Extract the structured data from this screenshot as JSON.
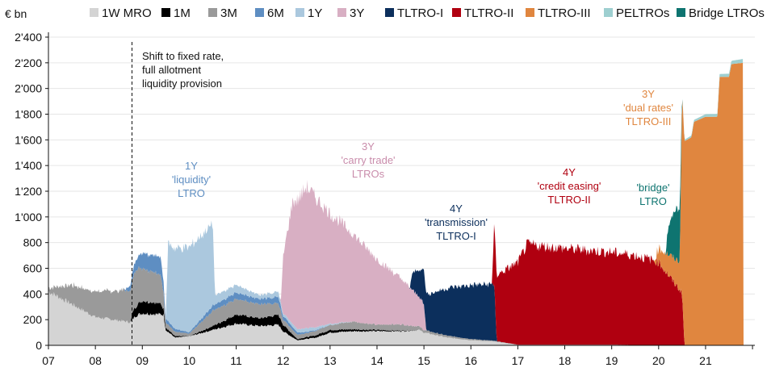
{
  "chart_data": {
    "type": "area",
    "unit_label": "€ bn",
    "x_labels": [
      "07",
      "08",
      "09",
      "10",
      "11",
      "12",
      "13",
      "14",
      "15",
      "16",
      "17",
      "18",
      "19",
      "20",
      "21"
    ],
    "y_ticks": [
      "0",
      "200",
      "400",
      "600",
      "800",
      "1'000",
      "1'200",
      "1'400",
      "1'600",
      "1'800",
      "2'000",
      "2'200",
      "2'400"
    ],
    "ylim": [
      0,
      2400
    ],
    "grid": true,
    "legend_position": "top",
    "series": [
      {
        "name": "1W MRO",
        "color": "#d4d4d4",
        "points": [
          [
            2007.0,
            420
          ],
          [
            2008.0,
            220
          ],
          [
            2008.75,
            180
          ],
          [
            2008.85,
            230
          ],
          [
            2009.0,
            250
          ],
          [
            2009.45,
            240
          ],
          [
            2009.5,
            120
          ],
          [
            2009.7,
            60
          ],
          [
            2010.0,
            70
          ],
          [
            2010.5,
            120
          ],
          [
            2011.0,
            170
          ],
          [
            2011.5,
            150
          ],
          [
            2011.9,
            160
          ],
          [
            2012.0,
            110
          ],
          [
            2012.3,
            40
          ],
          [
            2012.7,
            60
          ],
          [
            2013.0,
            100
          ],
          [
            2013.5,
            110
          ],
          [
            2014.0,
            110
          ],
          [
            2014.5,
            110
          ],
          [
            2014.9,
            120
          ],
          [
            2015.0,
            100
          ],
          [
            2015.5,
            60
          ],
          [
            2016.0,
            40
          ],
          [
            2016.5,
            30
          ],
          [
            2017.0,
            5
          ],
          [
            2018.0,
            5
          ],
          [
            2019.0,
            5
          ],
          [
            2020.0,
            0
          ],
          [
            2021.8,
            0
          ]
        ]
      },
      {
        "name": "1M",
        "color": "#000000",
        "points": [
          [
            2007.0,
            0
          ],
          [
            2008.75,
            0
          ],
          [
            2008.8,
            60
          ],
          [
            2009.0,
            100
          ],
          [
            2009.4,
            80
          ],
          [
            2009.5,
            20
          ],
          [
            2010.0,
            0
          ],
          [
            2010.5,
            30
          ],
          [
            2011.0,
            70
          ],
          [
            2011.5,
            60
          ],
          [
            2011.9,
            80
          ],
          [
            2012.0,
            50
          ],
          [
            2012.3,
            10
          ],
          [
            2012.8,
            20
          ],
          [
            2013.0,
            20
          ],
          [
            2014.0,
            10
          ],
          [
            2015.0,
            0
          ],
          [
            2021.8,
            0
          ]
        ]
      },
      {
        "name": "3M",
        "color": "#9a9a9a",
        "points": [
          [
            2007.0,
            30
          ],
          [
            2007.5,
            150
          ],
          [
            2008.0,
            200
          ],
          [
            2008.75,
            250
          ],
          [
            2008.85,
            280
          ],
          [
            2009.0,
            260
          ],
          [
            2009.4,
            220
          ],
          [
            2009.5,
            40
          ],
          [
            2010.0,
            20
          ],
          [
            2010.5,
            120
          ],
          [
            2011.0,
            120
          ],
          [
            2011.5,
            110
          ],
          [
            2011.9,
            90
          ],
          [
            2012.0,
            40
          ],
          [
            2012.5,
            30
          ],
          [
            2013.0,
            40
          ],
          [
            2013.5,
            60
          ],
          [
            2014.0,
            40
          ],
          [
            2014.5,
            50
          ],
          [
            2015.0,
            20
          ],
          [
            2015.5,
            15
          ],
          [
            2016.0,
            10
          ],
          [
            2017.0,
            0
          ],
          [
            2021.8,
            0
          ]
        ]
      },
      {
        "name": "6M",
        "color": "#5e8ec2",
        "points": [
          [
            2007.0,
            0
          ],
          [
            2008.6,
            0
          ],
          [
            2008.8,
            60
          ],
          [
            2009.0,
            120
          ],
          [
            2009.4,
            140
          ],
          [
            2009.5,
            30
          ],
          [
            2010.0,
            10
          ],
          [
            2010.5,
            40
          ],
          [
            2011.0,
            50
          ],
          [
            2011.5,
            40
          ],
          [
            2011.9,
            50
          ],
          [
            2012.0,
            30
          ],
          [
            2012.5,
            10
          ],
          [
            2013.0,
            0
          ],
          [
            2021.8,
            0
          ]
        ]
      },
      {
        "name": "1Y",
        "color": "#abc8de",
        "points": [
          [
            2007.0,
            0
          ],
          [
            2009.5,
            0
          ],
          [
            2009.55,
            610
          ],
          [
            2010.0,
            660
          ],
          [
            2010.5,
            640
          ],
          [
            2010.55,
            70
          ],
          [
            2011.0,
            60
          ],
          [
            2011.5,
            30
          ],
          [
            2011.9,
            40
          ],
          [
            2012.0,
            20
          ],
          [
            2012.5,
            30
          ],
          [
            2013.0,
            10
          ],
          [
            2013.5,
            0
          ],
          [
            2021.8,
            0
          ]
        ]
      },
      {
        "name": "3Y",
        "color": "#d8afc3",
        "points": [
          [
            2007.0,
            0
          ],
          [
            2011.95,
            0
          ],
          [
            2012.0,
            440
          ],
          [
            2012.2,
            950
          ],
          [
            2012.5,
            1100
          ],
          [
            2013.0,
            860
          ],
          [
            2013.5,
            680
          ],
          [
            2014.0,
            510
          ],
          [
            2014.5,
            360
          ],
          [
            2015.0,
            200
          ],
          [
            2015.05,
            0
          ],
          [
            2021.8,
            0
          ]
        ]
      },
      {
        "name": "TLTRO-I",
        "color": "#0c2f5c",
        "points": [
          [
            2007.0,
            0
          ],
          [
            2014.7,
            0
          ],
          [
            2014.75,
            130
          ],
          [
            2015.0,
            270
          ],
          [
            2015.5,
            370
          ],
          [
            2016.0,
            420
          ],
          [
            2016.5,
            440
          ],
          [
            2016.55,
            0
          ],
          [
            2021.8,
            0
          ]
        ]
      },
      {
        "name": "TLTRO-II",
        "color": "#b00010",
        "points": [
          [
            2007.0,
            0
          ],
          [
            2016.45,
            0
          ],
          [
            2016.5,
            500
          ],
          [
            2017.0,
            640
          ],
          [
            2017.2,
            780
          ],
          [
            2018.0,
            750
          ],
          [
            2019.0,
            720
          ],
          [
            2019.5,
            700
          ],
          [
            2020.0,
            650
          ],
          [
            2020.3,
            500
          ],
          [
            2020.5,
            410
          ],
          [
            2020.55,
            0
          ],
          [
            2021.8,
            0
          ]
        ]
      },
      {
        "name": "TLTRO-III",
        "color": "#e0863f",
        "points": [
          [
            2007.0,
            0
          ],
          [
            2019.9,
            0
          ],
          [
            2020.0,
            110
          ],
          [
            2020.45,
            220
          ],
          [
            2020.5,
            1580
          ],
          [
            2020.7,
            1620
          ],
          [
            2020.75,
            1740
          ],
          [
            2021.0,
            1780
          ],
          [
            2021.25,
            1780
          ],
          [
            2021.3,
            2090
          ],
          [
            2021.5,
            2090
          ],
          [
            2021.55,
            2190
          ],
          [
            2021.8,
            2200
          ],
          [
            2021.81,
            0
          ]
        ]
      },
      {
        "name": "PELTROs",
        "color": "#9ecfd0",
        "points": [
          [
            2007.0,
            0
          ],
          [
            2020.45,
            0
          ],
          [
            2020.5,
            10
          ],
          [
            2021.0,
            20
          ],
          [
            2021.5,
            25
          ],
          [
            2021.8,
            30
          ]
        ]
      },
      {
        "name": "Bridge LTROs",
        "color": "#0e7470",
        "points": [
          [
            2007.0,
            0
          ],
          [
            2020.15,
            0
          ],
          [
            2020.2,
            200
          ],
          [
            2020.3,
            340
          ],
          [
            2020.45,
            420
          ],
          [
            2020.5,
            0
          ],
          [
            2021.8,
            0
          ]
        ]
      }
    ],
    "vline": {
      "x": 2008.78,
      "style": "dashed"
    },
    "annotations": [
      {
        "lines": [
          "Shift to fixed rate,",
          "full allotment",
          "liquidity provision"
        ],
        "color": "#111111"
      },
      {
        "lines": [
          "1Y",
          "'liquidity'",
          "LTRO"
        ],
        "color": "#5e8ec2"
      },
      {
        "lines": [
          "3Y",
          "'carry trade'",
          "LTROs"
        ],
        "color": "#c98cab"
      },
      {
        "lines": [
          "4Y",
          "'transmission'",
          "TLTRO-I"
        ],
        "color": "#0c2f5c"
      },
      {
        "lines": [
          "4Y",
          "'credit easing'",
          "TLTRO-II"
        ],
        "color": "#b00010"
      },
      {
        "lines": [
          "'bridge'",
          "LTRO"
        ],
        "color": "#0e7470"
      },
      {
        "lines": [
          "3Y",
          "'dual rates'",
          "TLTRO-III"
        ],
        "color": "#e0863f"
      }
    ]
  }
}
